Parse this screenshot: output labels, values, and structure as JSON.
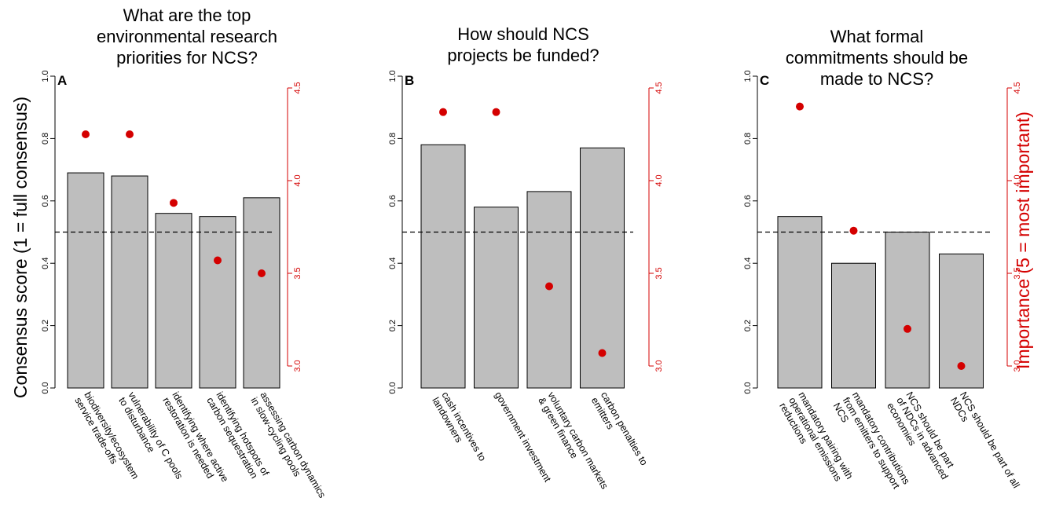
{
  "figure": {
    "left_ylabel": "Consensus score (1 = full consensus)",
    "right_ylabel": "Importance (5 = most important)",
    "colors": {
      "bar": "#bebebe",
      "dot": "#d40000",
      "right_axis": "#d40000"
    }
  },
  "chart_data": [
    {
      "type": "bar",
      "panel": "A",
      "title_lines": [
        "What are the top",
        "environmental research",
        "priorities for NCS?"
      ],
      "categories": [
        [
          "biodiversity/ecosystem",
          "service trade-offs"
        ],
        [
          "vulnerability of C pools",
          "to disturbance"
        ],
        [
          "identifying where active",
          "restoration is needed"
        ],
        [
          "identifying hotspots of",
          "carbon sequestration"
        ],
        [
          "assessing carbon dynamics",
          "in slow-cycling pools"
        ]
      ],
      "consensus": [
        0.69,
        0.68,
        0.56,
        0.55,
        0.61
      ],
      "importance": [
        4.25,
        4.25,
        3.88,
        3.57,
        3.5
      ],
      "ylim": [
        0,
        1
      ],
      "yticks": [
        "0.0",
        "0.2",
        "0.4",
        "0.6",
        "0.8",
        "1.0"
      ],
      "y2lim": [
        3.0,
        4.5
      ],
      "y2ticks": [
        "3.0",
        "3.5",
        "4.0",
        "4.5"
      ],
      "reference_line": 0.5
    },
    {
      "type": "bar",
      "panel": "B",
      "title_lines": [
        "How should NCS",
        "projects be funded?"
      ],
      "categories": [
        [
          "cash incentives to",
          "landowners"
        ],
        [
          "government investment"
        ],
        [
          "voluntary carbon markets",
          "& green finance"
        ],
        [
          "carbon penalties to",
          "emitters"
        ]
      ],
      "consensus": [
        0.78,
        0.58,
        0.63,
        0.77
      ],
      "importance": [
        4.37,
        4.37,
        3.43,
        3.07
      ],
      "ylim": [
        0,
        1
      ],
      "yticks": [
        "0.0",
        "0.2",
        "0.4",
        "0.6",
        "0.8",
        "1.0"
      ],
      "y2lim": [
        3.0,
        4.5
      ],
      "y2ticks": [
        "3.0",
        "3.5",
        "4.0",
        "4.5"
      ],
      "reference_line": 0.5
    },
    {
      "type": "bar",
      "panel": "C",
      "title_lines": [
        "What formal",
        "commitments should be",
        "made to NCS?"
      ],
      "categories": [
        [
          "mandatory pairing with",
          "operational emissions",
          "reductions"
        ],
        [
          "mandatory contributions",
          "from emitters to support",
          "NCS"
        ],
        [
          "NCS should be part",
          "of NDCs in advanced",
          "economies"
        ],
        [
          "NCS should be part of all",
          "NDCs"
        ]
      ],
      "consensus": [
        0.55,
        0.4,
        0.5,
        0.43
      ],
      "importance": [
        4.4,
        3.73,
        3.2,
        3.0
      ],
      "ylim": [
        0,
        1
      ],
      "yticks": [
        "0.0",
        "0.2",
        "0.4",
        "0.6",
        "0.8",
        "1.0"
      ],
      "y2lim": [
        3.0,
        4.5
      ],
      "y2ticks": [
        "3.0",
        "3.5",
        "4.0",
        "4.5"
      ],
      "reference_line": 0.5
    }
  ]
}
